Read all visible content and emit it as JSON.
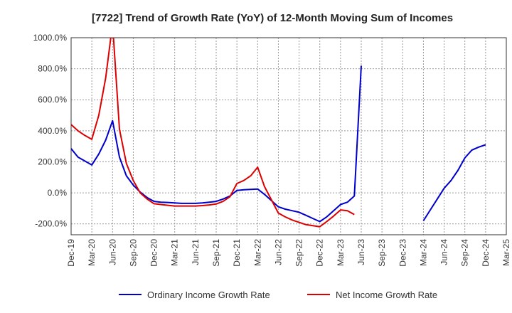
{
  "chart_data": {
    "type": "line",
    "title": "[7722]  Trend of Growth Rate (YoY) of 12-Month Moving Sum of Incomes",
    "xlabel": "",
    "ylabel": "",
    "ylim": [
      -270,
      1000
    ],
    "yticks": [
      1000,
      800,
      600,
      400,
      200,
      0,
      -200
    ],
    "ytick_labels": [
      "1000.0%",
      "800.0%",
      "600.0%",
      "400.0%",
      "200.0%",
      "0.0%",
      "-200.0%"
    ],
    "x_start": "2019-12",
    "x_end": "2025-03",
    "xtick_labels": [
      "Dec-19",
      "Mar-20",
      "Jun-20",
      "Sep-20",
      "Dec-20",
      "Mar-21",
      "Jun-21",
      "Sep-21",
      "Dec-21",
      "Mar-22",
      "Jun-22",
      "Sep-22",
      "Dec-22",
      "Mar-23",
      "Jun-23",
      "Sep-23",
      "Dec-23",
      "Mar-24",
      "Jun-24",
      "Sep-24",
      "Dec-24",
      "Mar-25"
    ],
    "grid": "vertical-dashed",
    "legend_position": "bottom",
    "series": [
      {
        "name": "Ordinary Income Growth Rate",
        "color": "#0000cc",
        "points": [
          [
            "2019-12",
            285
          ],
          [
            "2020-01",
            230
          ],
          [
            "2020-02",
            205
          ],
          [
            "2020-03",
            180
          ],
          [
            "2020-04",
            250
          ],
          [
            "2020-05",
            340
          ],
          [
            "2020-06",
            465
          ],
          [
            "2020-07",
            230
          ],
          [
            "2020-08",
            110
          ],
          [
            "2020-09",
            50
          ],
          [
            "2020-10",
            5
          ],
          [
            "2020-11",
            -30
          ],
          [
            "2020-12",
            -55
          ],
          [
            "2021-01",
            -60
          ],
          [
            "2021-02",
            -62
          ],
          [
            "2021-03",
            -65
          ],
          [
            "2021-04",
            -68
          ],
          [
            "2021-05",
            -68
          ],
          [
            "2021-06",
            -68
          ],
          [
            "2021-07",
            -65
          ],
          [
            "2021-08",
            -60
          ],
          [
            "2021-09",
            -55
          ],
          [
            "2021-10",
            -40
          ],
          [
            "2021-11",
            -20
          ],
          [
            "2021-12",
            15
          ],
          [
            "2022-01",
            20
          ],
          [
            "2022-02",
            22
          ],
          [
            "2022-03",
            25
          ],
          [
            "2022-04",
            -10
          ],
          [
            "2022-05",
            -50
          ],
          [
            "2022-06",
            -90
          ],
          [
            "2022-07",
            -105
          ],
          [
            "2022-08",
            -115
          ],
          [
            "2022-09",
            -125
          ],
          [
            "2022-10",
            -145
          ],
          [
            "2022-11",
            -165
          ],
          [
            "2022-12",
            -185
          ],
          [
            "2023-01",
            -155
          ],
          [
            "2023-02",
            -115
          ],
          [
            "2023-03",
            -75
          ],
          [
            "2023-04",
            -60
          ],
          [
            "2023-05",
            -20
          ],
          [
            "2023-06",
            820
          ],
          [
            "2024-03",
            -180
          ],
          [
            "2024-04",
            -110
          ],
          [
            "2024-05",
            -40
          ],
          [
            "2024-06",
            30
          ],
          [
            "2024-07",
            80
          ],
          [
            "2024-08",
            145
          ],
          [
            "2024-09",
            225
          ],
          [
            "2024-10",
            275
          ],
          [
            "2024-11",
            295
          ],
          [
            "2024-12",
            310
          ]
        ]
      },
      {
        "name": "Net Income Growth Rate",
        "color": "#dd0000",
        "points": [
          [
            "2019-12",
            440
          ],
          [
            "2020-01",
            400
          ],
          [
            "2020-02",
            370
          ],
          [
            "2020-03",
            345
          ],
          [
            "2020-04",
            500
          ],
          [
            "2020-05",
            740
          ],
          [
            "2020-06",
            1090
          ],
          [
            "2020-07",
            410
          ],
          [
            "2020-08",
            190
          ],
          [
            "2020-09",
            80
          ],
          [
            "2020-10",
            0
          ],
          [
            "2020-11",
            -40
          ],
          [
            "2020-12",
            -70
          ],
          [
            "2021-01",
            -75
          ],
          [
            "2021-02",
            -80
          ],
          [
            "2021-03",
            -85
          ],
          [
            "2021-04",
            -85
          ],
          [
            "2021-05",
            -85
          ],
          [
            "2021-06",
            -85
          ],
          [
            "2021-07",
            -82
          ],
          [
            "2021-08",
            -78
          ],
          [
            "2021-09",
            -72
          ],
          [
            "2021-10",
            -55
          ],
          [
            "2021-11",
            -25
          ],
          [
            "2021-12",
            60
          ],
          [
            "2022-01",
            80
          ],
          [
            "2022-02",
            110
          ],
          [
            "2022-03",
            165
          ],
          [
            "2022-04",
            40
          ],
          [
            "2022-05",
            -45
          ],
          [
            "2022-06",
            -130
          ],
          [
            "2022-07",
            -155
          ],
          [
            "2022-08",
            -175
          ],
          [
            "2022-09",
            -190
          ],
          [
            "2022-10",
            -205
          ],
          [
            "2022-11",
            -212
          ],
          [
            "2022-12",
            -218
          ],
          [
            "2023-01",
            -185
          ],
          [
            "2023-02",
            -150
          ],
          [
            "2023-03",
            -110
          ],
          [
            "2023-04",
            -115
          ],
          [
            "2023-05",
            -140
          ]
        ]
      }
    ]
  }
}
